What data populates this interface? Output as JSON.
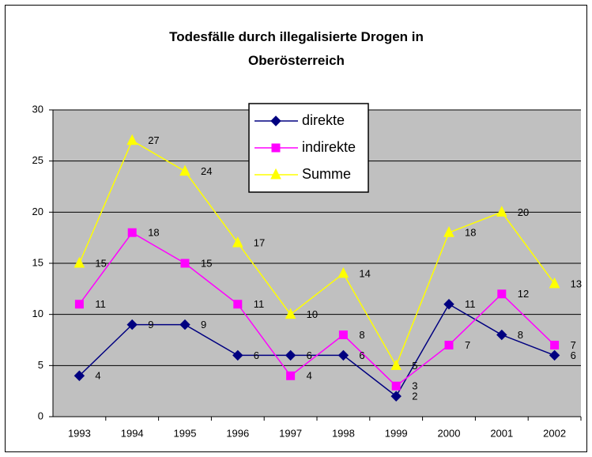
{
  "chart_data": {
    "type": "line",
    "title": "Todesfälle durch illegalisierte Drogen in Oberösterreich",
    "categories": [
      "1993",
      "1994",
      "1995",
      "1996",
      "1997",
      "1998",
      "1999",
      "2000",
      "2001",
      "2002"
    ],
    "series": [
      {
        "name": "direkte",
        "color": "#000080",
        "marker": "diamond",
        "values": [
          4,
          9,
          9,
          6,
          6,
          6,
          2,
          11,
          8,
          6
        ]
      },
      {
        "name": "indirekte",
        "color": "#ff00ff",
        "marker": "square",
        "values": [
          11,
          18,
          15,
          11,
          4,
          8,
          3,
          7,
          12,
          7
        ]
      },
      {
        "name": "Summe",
        "color": "#ffff00",
        "marker": "triangle",
        "values": [
          15,
          27,
          24,
          17,
          10,
          14,
          5,
          18,
          20,
          13
        ]
      }
    ],
    "ylim": [
      0,
      30
    ],
    "yticks": [
      0,
      5,
      10,
      15,
      20,
      25,
      30
    ],
    "grid": true,
    "legend": "top"
  }
}
